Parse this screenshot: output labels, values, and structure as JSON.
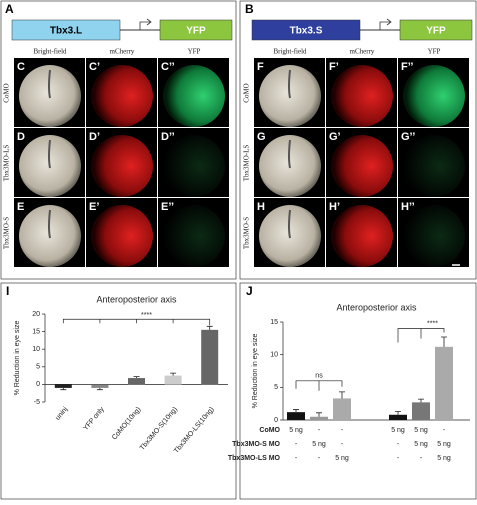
{
  "panels": [
    {
      "letter": "A",
      "construct": "Tbx3.L",
      "reporter": "YFP",
      "columns": [
        "Bright-field",
        "mCherry",
        "YFP"
      ],
      "rows": [
        {
          "label": "CoMO",
          "letters": [
            "C",
            "C’",
            "C’’"
          ]
        },
        {
          "label": "Tbx3MO-LS",
          "letters": [
            "D",
            "D’",
            "D’’"
          ]
        },
        {
          "label": "Tbx3MO-S",
          "letters": [
            "E",
            "E’",
            "E’’"
          ]
        }
      ]
    },
    {
      "letter": "B",
      "construct": "Tbx3.S",
      "reporter": "YFP",
      "columns": [
        "Bright-field",
        "mCherry",
        "YFP"
      ],
      "rows": [
        {
          "label": "CoMO",
          "letters": [
            "F",
            "F’",
            "F’’"
          ]
        },
        {
          "label": "Tbx3MO-LS",
          "letters": [
            "G",
            "G’",
            "G’’"
          ]
        },
        {
          "label": "Tbx3MO-S",
          "letters": [
            "H",
            "H’",
            "H’’"
          ]
        }
      ]
    }
  ],
  "chart_data": [
    {
      "type": "bar",
      "letter": "I",
      "title": "Anteroposterior axis",
      "ylabel": "% Reduction in eye size",
      "categories": [
        "uninj",
        "YFP only",
        "CoMO(10ng)",
        "Tbx3MO-S(10ng)",
        "Tbx3MO-LS(10ng)"
      ],
      "values": [
        -1,
        -1,
        1.8,
        2.5,
        15.5
      ],
      "errors": [
        0.5,
        0.5,
        0.4,
        0.7,
        1.0
      ],
      "colors": [
        "#222222",
        "#888888",
        "#666666",
        "#cccccc",
        "#666666"
      ],
      "ylim": [
        -5,
        20
      ],
      "yticks": [
        -5,
        0,
        5,
        10,
        15,
        20
      ],
      "annotations": [
        "****"
      ]
    },
    {
      "type": "bar",
      "letter": "J",
      "title": "Anteroposterior axis",
      "ylabel": "% Reduction in eye size",
      "categories": [
        null,
        null,
        null,
        null,
        null,
        null
      ],
      "values": [
        1.2,
        0.5,
        3.3,
        0.8,
        2.7,
        11.2
      ],
      "errors": [
        0.4,
        0.6,
        1.0,
        0.5,
        0.5,
        1.5
      ],
      "colors": [
        "#111111",
        "#999999",
        "#aaaaaa",
        "#111111",
        "#777777",
        "#aaaaaa"
      ],
      "ylim": [
        0,
        15
      ],
      "yticks": [
        0,
        5,
        10,
        15
      ],
      "annotations": [
        "ns",
        "****"
      ],
      "table": {
        "rows": [
          {
            "label": "CoMO",
            "cells": [
              "5 ng",
              "-",
              "-",
              "5 ng",
              "5 ng",
              "-"
            ]
          },
          {
            "label": "Tbx3MO-S MO",
            "cells": [
              "-",
              "5 ng",
              "-",
              "-",
              "5 ng",
              "5 ng"
            ]
          },
          {
            "label": "Tbx3MO-LS MO",
            "cells": [
              "-",
              "-",
              "5 ng",
              "-",
              "-",
              "5 ng"
            ]
          }
        ]
      }
    }
  ]
}
